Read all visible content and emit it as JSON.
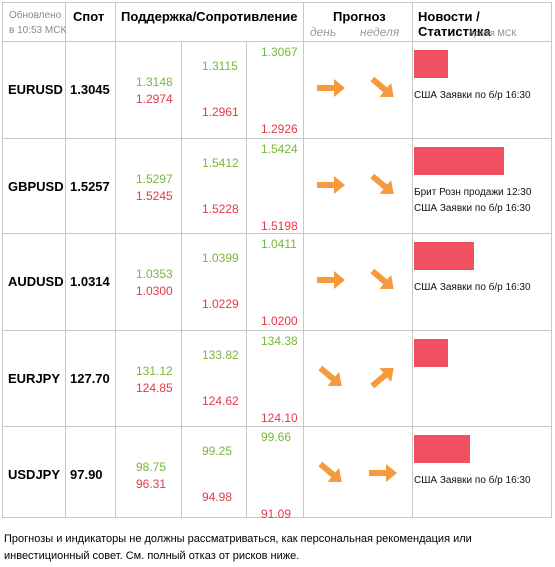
{
  "header": {
    "updated_line1": "Обновлено",
    "updated_line2": "в 10:53 МСК",
    "spot": "Спот",
    "support_resistance": "Поддержка/Сопротивление",
    "forecast": "Прогноз",
    "day": "день",
    "week": "неделя",
    "news_stats": "Новости / Статистика",
    "time_msk": "время МСК"
  },
  "rows": [
    {
      "symbol": "EURUSD",
      "spot": "1.3045",
      "res1": "1.3148",
      "sup1": "1.2974",
      "res2": "1.3115",
      "sup2": "1.2961",
      "res3": "1.3067",
      "sup3": "1.2926",
      "day_trend": "right-arrow-icon",
      "week_trend": "down-right-arrow-icon",
      "news": [
        "США Заявки по б/р 16:30"
      ]
    },
    {
      "symbol": "GBPUSD",
      "spot": "1.5257",
      "res1": "1.5297",
      "sup1": "1.5245",
      "res2": "1.5412",
      "sup2": "1.5228",
      "res3": "1.5424",
      "sup3": "1.5198",
      "day_trend": "right-arrow-icon",
      "week_trend": "down-right-arrow-icon",
      "news": [
        "Брит Розн продажи 12:30",
        "США Заявки по б/р 16:30"
      ]
    },
    {
      "symbol": "AUDUSD",
      "spot": "1.0314",
      "res1": "1.0353",
      "sup1": "1.0300",
      "res2": "1.0399",
      "sup2": "1.0229",
      "res3": "1.0411",
      "sup3": "1.0200",
      "day_trend": "right-arrow-icon",
      "week_trend": "down-right-arrow-icon",
      "news": [
        "США Заявки по б/р 16:30"
      ]
    },
    {
      "symbol": "EURJPY",
      "spot": "127.70",
      "res1": "131.12",
      "sup1": "124.85",
      "res2": "133.82",
      "sup2": "124.62",
      "res3": "134.38",
      "sup3": "124.10",
      "day_trend": "down-right-arrow-icon",
      "week_trend": "up-right-arrow-icon",
      "news": []
    },
    {
      "symbol": "USDJPY",
      "spot": "97.90",
      "res1": "98.75",
      "sup1": "96.31",
      "res2": "99.25",
      "sup2": "94.98",
      "res3": "99.66",
      "sup3": "91.09",
      "day_trend": "down-right-arrow-icon",
      "week_trend": "right-arrow-icon",
      "news": [
        "США Заявки по б/р 16:30"
      ]
    }
  ],
  "colors": {
    "support": "#e23a46",
    "resistance": "#76b83b",
    "arrow": "#f59a3e",
    "bar": "#f05060"
  },
  "disclaimer": "Прогнозы и индикаторы не должны рассматриваться, как персональная рекомендация или инвестиционный совет. См. полный отказ от рисков ниже."
}
